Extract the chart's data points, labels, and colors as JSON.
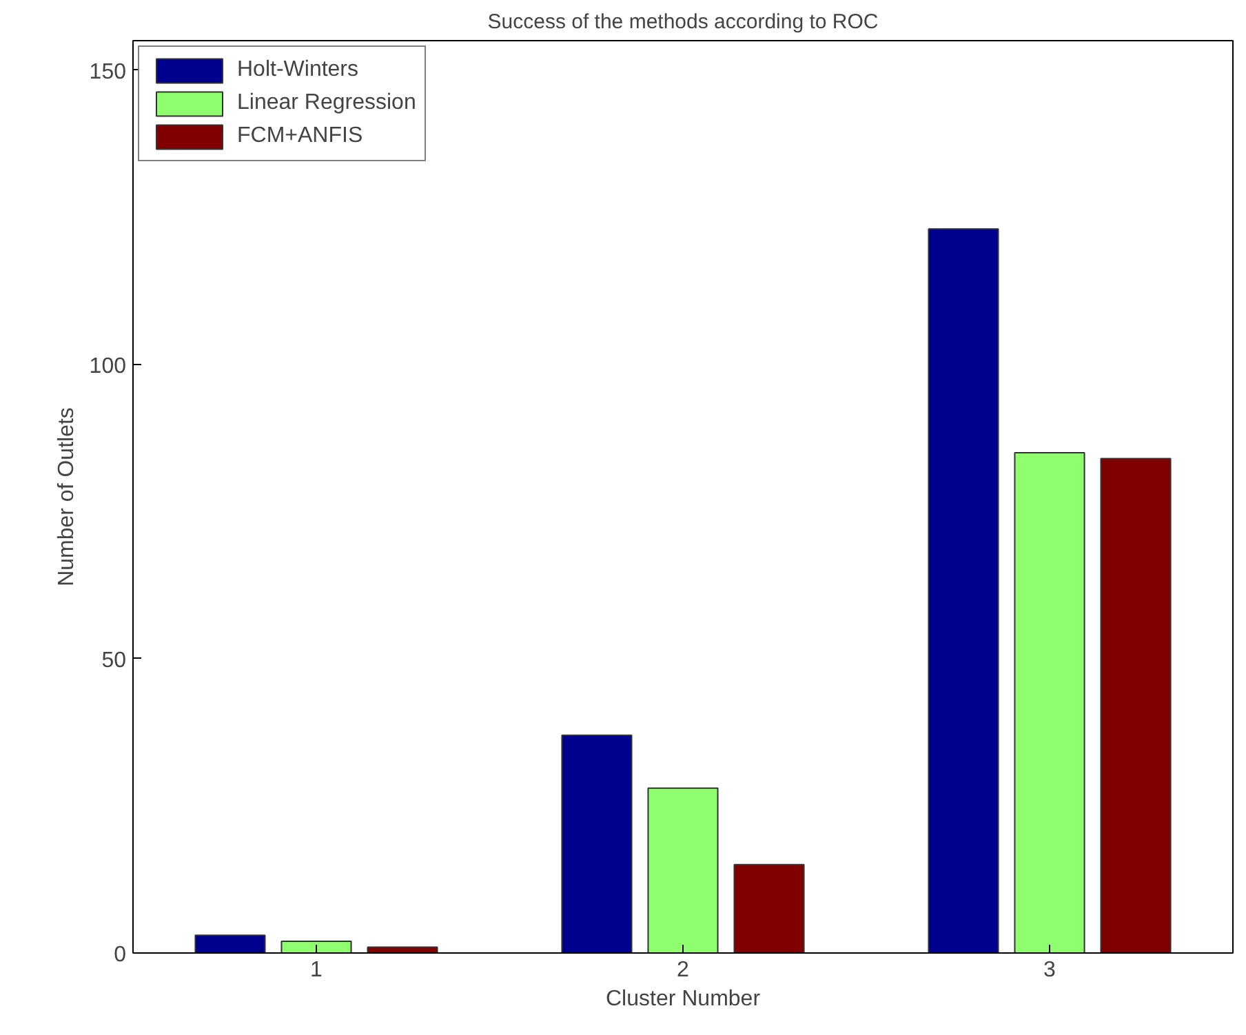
{
  "chart_data": {
    "type": "bar",
    "title": "Success of the methods according to ROC",
    "xlabel": "Cluster Number",
    "ylabel": "Number of Outlets",
    "categories": [
      "1",
      "2",
      "3"
    ],
    "series": [
      {
        "name": "Holt-Winters",
        "color": "#00008f",
        "values": [
          3,
          37,
          123
        ]
      },
      {
        "name": "Linear Regression",
        "color": "#8fff6f",
        "values": [
          2,
          28,
          85
        ]
      },
      {
        "name": "FCM+ANFIS",
        "color": "#800000",
        "values": [
          1,
          15,
          84
        ]
      }
    ],
    "ylim": [
      0,
      155
    ],
    "yticks": [
      0,
      50,
      100,
      150
    ],
    "grid": false,
    "legend": "top left"
  }
}
